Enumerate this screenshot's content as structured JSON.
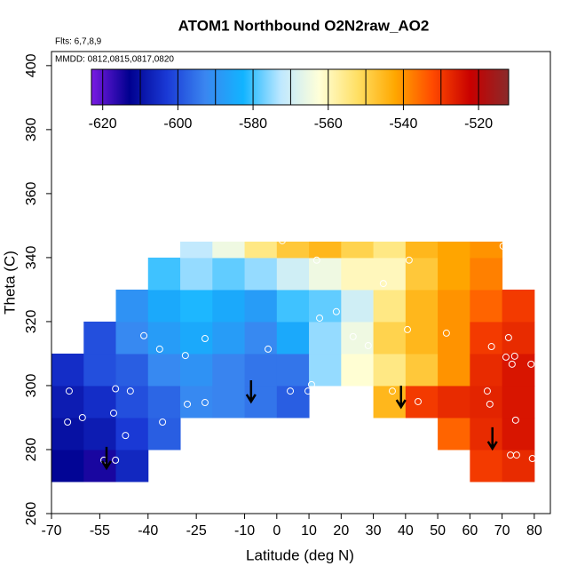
{
  "chart_data": {
    "type": "heatmap",
    "title": "ATOM1 Northbound O2N2raw_AO2",
    "annotations": [
      "Flts: 6,7,8,9",
      "MMDD: 0812,0815,0817,0820"
    ],
    "x_label": "Latitude (deg N)",
    "y_label": "Theta (C)",
    "xlim": [
      -70,
      85
    ],
    "ylim": [
      260,
      404.4
    ],
    "xticks": [
      -70,
      -55,
      -40,
      -25,
      -10,
      0,
      10,
      20,
      30,
      40,
      50,
      60,
      70,
      80
    ],
    "yticks": [
      260,
      280,
      300,
      320,
      340,
      360,
      380,
      400
    ],
    "x_edges": [
      -70,
      -60,
      -50,
      -40,
      -30,
      -20,
      -10,
      0,
      10,
      20,
      30,
      40,
      50,
      60,
      70,
      80
    ],
    "y_edges": [
      270,
      280,
      290,
      300,
      310,
      320,
      330,
      340,
      345
    ],
    "z": [
      [
        -612,
        -615,
        -606,
        null,
        null,
        null,
        null,
        null,
        null,
        null,
        null,
        null,
        null,
        -530,
        -528
      ],
      [
        -610,
        -608,
        -603,
        -598,
        null,
        null,
        null,
        null,
        null,
        null,
        null,
        null,
        -535,
        -528,
        -525
      ],
      [
        -608,
        -605,
        -600,
        -597,
        -592,
        -593,
        -595,
        -598,
        null,
        null,
        -545,
        -530,
        -528,
        -527,
        -525
      ],
      [
        -605,
        -600,
        -598,
        -592,
        -590,
        -593,
        -595,
        -595,
        -575,
        -562,
        -555,
        -548,
        -540,
        -528,
        -525
      ],
      [
        null,
        -600,
        -592,
        -588,
        -585,
        -588,
        -592,
        -585,
        -575,
        -565,
        -550,
        -545,
        -540,
        -530,
        -528
      ],
      [
        null,
        null,
        -590,
        -585,
        -582,
        -585,
        -588,
        -580,
        -578,
        -570,
        -555,
        -545,
        -540,
        -535,
        -530
      ],
      [
        null,
        null,
        null,
        -580,
        -575,
        -578,
        -575,
        -570,
        -565,
        -560,
        -560,
        -548,
        -542,
        -538,
        null
      ],
      [
        null,
        null,
        null,
        null,
        -572,
        -565,
        -555,
        -548,
        -545,
        -550,
        -555,
        -545,
        -542,
        -540,
        null
      ]
    ],
    "clim": [
      -623,
      -512
    ],
    "colors": [
      "#7a1be3",
      "#00008f",
      "#1a3ad6",
      "#3a86f0",
      "#12b4ff",
      "#bfe8ff",
      "#ffffd8",
      "#ffe066",
      "#ffa800",
      "#ff4a00",
      "#c80000",
      "#8a2a2a"
    ],
    "colorbar_ticks": [
      -620,
      -600,
      -580,
      -560,
      -540,
      -520
    ],
    "levels": [
      -620,
      -610,
      -600,
      -590,
      -580,
      -570,
      -560,
      -550,
      -540,
      -530,
      -520
    ],
    "points": {
      "x": [
        -65,
        -60.4,
        -64.5,
        -50.1,
        -45.5,
        -50.7,
        -47,
        -53.7,
        -50.1,
        -35.5,
        -36.4,
        -27.8,
        -22.3,
        -22.3,
        -28.4,
        -2.7,
        4.2,
        10.8,
        9.7,
        13.3,
        18.5,
        17.7,
        12.4,
        1.7,
        23.7,
        28.4,
        33.1,
        35.9,
        43.9,
        41.1,
        40.6,
        65.4,
        66.7,
        72,
        71.2,
        73.9,
        73.1,
        79,
        74.2,
        66.2,
        72.6,
        74.5,
        79.4,
        70.3,
        52.7,
        -41.3
      ],
      "y": [
        288.6,
        290,
        298.3,
        299,
        298.3,
        291.4,
        284.4,
        276.7,
        276.7,
        288.6,
        311.4,
        294.2,
        294.7,
        314.7,
        309.4,
        311.4,
        298.3,
        300.3,
        298.3,
        321.1,
        323.1,
        298.3,
        339.2,
        345.3,
        315.3,
        312.5,
        331.9,
        298.3,
        295,
        339.2,
        317.5,
        298.3,
        312.2,
        315,
        308.9,
        309.2,
        306.7,
        306.7,
        289.2,
        294.2,
        278.3,
        278.3,
        277.2,
        343.6,
        316.4,
        315.6
      ]
    },
    "arrows": {
      "x": [
        -52.9,
        -8,
        38.6,
        67
      ],
      "y": [
        274.2,
        295,
        293.3,
        280.3
      ]
    }
  }
}
